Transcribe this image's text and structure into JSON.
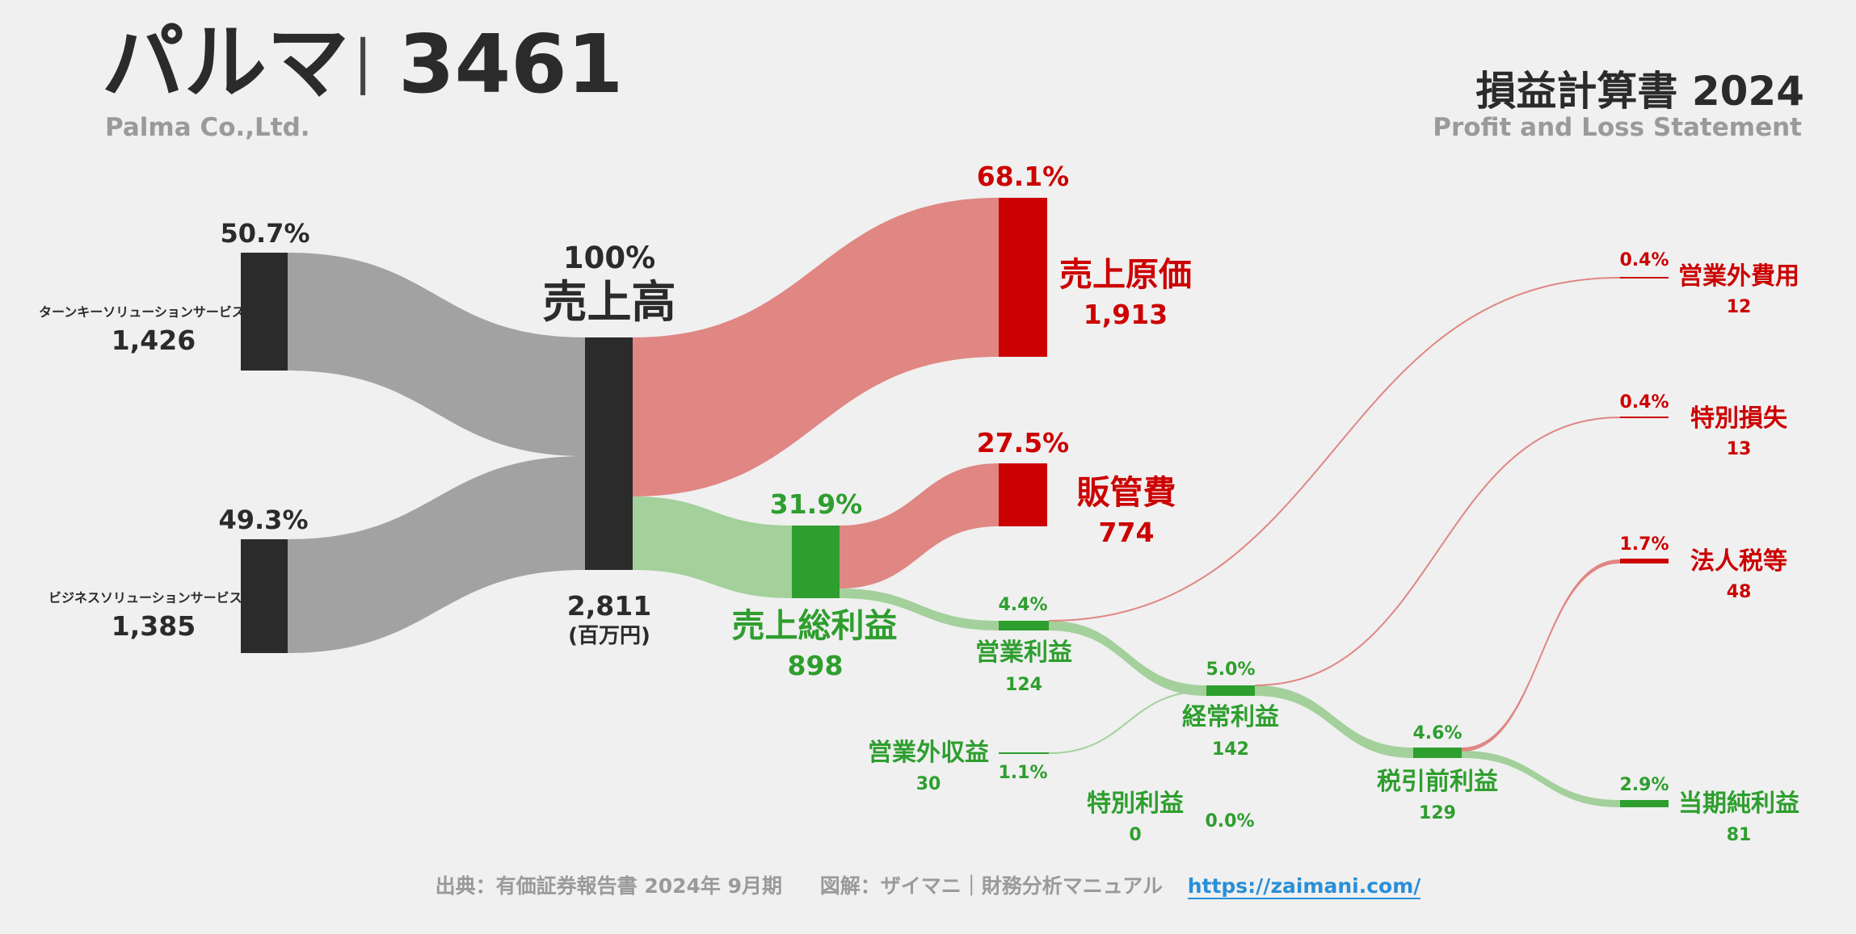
{
  "header": {
    "company_jp": "パルマ",
    "separator": "|",
    "code": "3461",
    "company_en": "Palma Co.,Ltd.",
    "title_jp": "損益計算書 2024",
    "title_en": "Profit and Loss Statement"
  },
  "footer": {
    "source": "出典：有価証券報告書 2024年 9月期",
    "credit": "図解：ザイマニ｜財務分析マニュアル",
    "url": "https://zaimani.com/"
  },
  "colors": {
    "revenue": "#2b2b2b",
    "cost": "#cc0000",
    "cost_flow": "#e08683",
    "profit": "#2e9e2e",
    "profit_flow": "#a3d09b",
    "segment_flow": "#a2a2a2"
  },
  "chart_data": {
    "type": "sankey",
    "unit": "(百万円)",
    "segments": [
      {
        "label": "ターンキーソリューションサービス",
        "value": "1,426",
        "pct": "50.7%"
      },
      {
        "label": "ビジネスソリューションサービス",
        "value": "1,385",
        "pct": "49.3%"
      }
    ],
    "revenue": {
      "label": "売上高",
      "value": "2,811",
      "pct": "100%"
    },
    "cogs": {
      "label": "売上原価",
      "value": "1,913",
      "pct": "68.1%"
    },
    "gross_profit": {
      "label": "売上総利益",
      "value": "898",
      "pct": "31.9%"
    },
    "sga": {
      "label": "販管費",
      "value": "774",
      "pct": "27.5%"
    },
    "operating_profit": {
      "label": "営業利益",
      "value": "124",
      "pct": "4.4%"
    },
    "non_op_income": {
      "label": "営業外収益",
      "value": "30",
      "pct": "1.1%"
    },
    "non_op_expense": {
      "label": "営業外費用",
      "value": "12",
      "pct": "0.4%"
    },
    "ordinary_profit": {
      "label": "経常利益",
      "value": "142",
      "pct": "5.0%"
    },
    "extraordinary_income": {
      "label": "特別利益",
      "value": "0",
      "pct": "0.0%"
    },
    "extraordinary_loss": {
      "label": "特別損失",
      "value": "13",
      "pct": "0.4%"
    },
    "pretax_profit": {
      "label": "税引前利益",
      "value": "129",
      "pct": "4.6%"
    },
    "income_tax": {
      "label": "法人税等",
      "value": "48",
      "pct": "1.7%"
    },
    "net_income": {
      "label": "当期純利益",
      "value": "81",
      "pct": "2.9%"
    }
  }
}
